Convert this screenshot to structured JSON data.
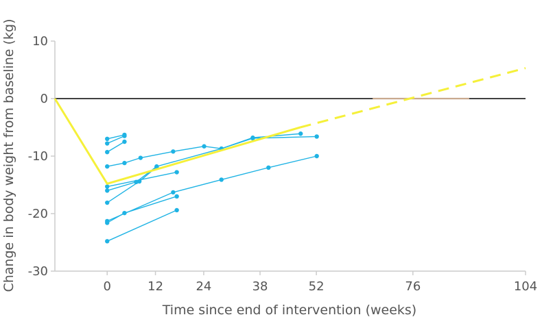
{
  "chart_data": {
    "type": "line",
    "xlabel": "Time since end of intervention (weeks)",
    "ylabel": "Change in body weight from baseline (kg)",
    "x_ticks": [
      0,
      12,
      24,
      38,
      52,
      76,
      104
    ],
    "y_ticks": [
      10,
      0,
      -10,
      -20,
      -30
    ],
    "xlim": [
      -13,
      104
    ],
    "ylim": [
      -30,
      10
    ],
    "grid": false,
    "legend": "none",
    "reference_line": {
      "y": 0,
      "color": "#000000"
    },
    "highlight_segment": {
      "x": [
        66,
        90
      ],
      "y": 0,
      "color": "#c8a98e"
    },
    "colors": {
      "study": "#1fb3e4",
      "trend": "#f5f03a",
      "axis": "#cccccc"
    },
    "study_series": [
      {
        "x": [
          0,
          4.3
        ],
        "y": [
          -7.0,
          -6.3
        ]
      },
      {
        "x": [
          0,
          4.3
        ],
        "y": [
          -7.8,
          -6.5
        ]
      },
      {
        "x": [
          0,
          4.3
        ],
        "y": [
          -9.3,
          -7.5
        ]
      },
      {
        "x": [
          0,
          4.3,
          8.3,
          16.4,
          24.1,
          28.4,
          36.2,
          48.1
        ],
        "y": [
          -11.8,
          -11.2,
          -10.3,
          -9.2,
          -8.3,
          -8.7,
          -6.8,
          -6.1
        ]
      },
      {
        "x": [
          0,
          17.3
        ],
        "y": [
          -15.3,
          -12.8
        ]
      },
      {
        "x": [
          0,
          7.2,
          12.3,
          28.4,
          36.2,
          52.1
        ],
        "y": [
          -16.0,
          -14.5,
          -11.8,
          -8.7,
          -6.9,
          -6.6
        ]
      },
      {
        "x": [
          0,
          8.0,
          12.3
        ],
        "y": [
          -18.1,
          -14.4,
          -11.9
        ]
      },
      {
        "x": [
          0,
          16.4,
          28.4,
          40.1,
          52.1
        ],
        "y": [
          -21.3,
          -16.3,
          -14.1,
          -12.0,
          -10.0
        ]
      },
      {
        "x": [
          0,
          4.3,
          17.3
        ],
        "y": [
          -21.6,
          -19.9,
          -17.0
        ]
      },
      {
        "x": [
          0,
          17.3
        ],
        "y": [
          -24.8,
          -19.4
        ]
      }
    ],
    "trend_series": {
      "solid": {
        "x": [
          -13,
          0,
          48
        ],
        "y": [
          0,
          -14.8,
          -5.0
        ]
      },
      "dashed": {
        "x": [
          48,
          104
        ],
        "y": [
          -5.0,
          5.3
        ]
      }
    }
  }
}
